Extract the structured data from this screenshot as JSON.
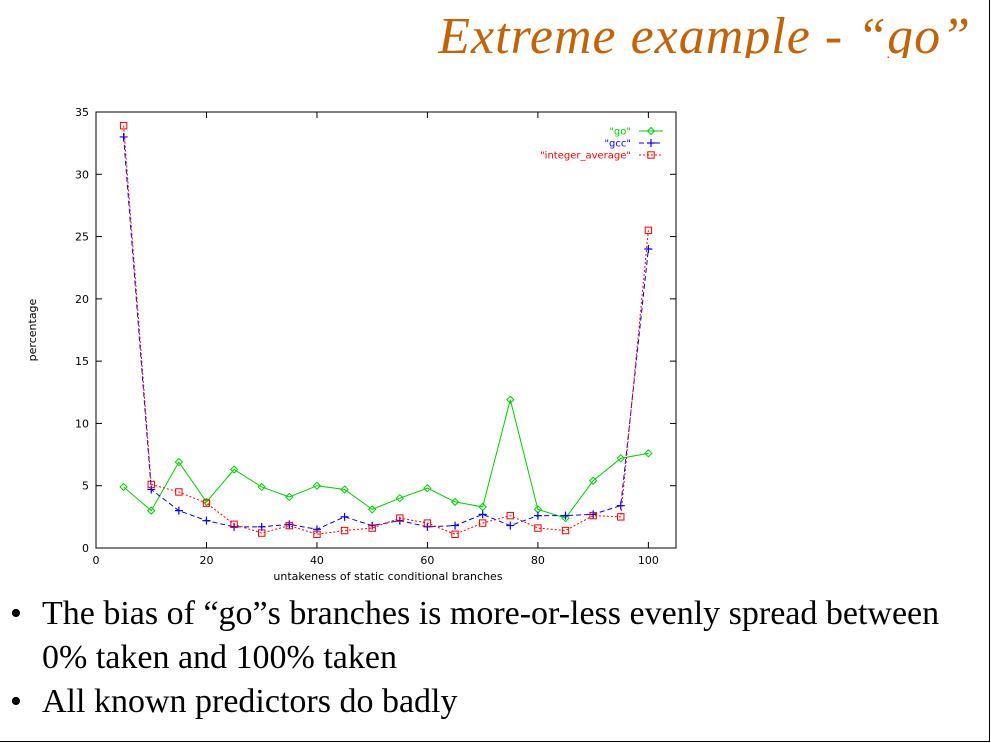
{
  "slide": {
    "title": "Extreme example - “go”",
    "bullets": [
      "The bias of “go”s branches is more-or-less evenly spread between 0% taken and 100% taken",
      "All known predictors do badly"
    ],
    "bullet_glyph": "•"
  },
  "chart_data": {
    "type": "line",
    "xlabel": "untakeness of static conditional branches",
    "ylabel": "percentage",
    "xlim": [
      0,
      105
    ],
    "ylim": [
      0,
      35
    ],
    "x_ticks": [
      0,
      20,
      40,
      60,
      80,
      100
    ],
    "y_ticks": [
      0,
      5,
      10,
      15,
      20,
      25,
      30,
      35
    ],
    "legend_position": "top-right",
    "x": [
      5,
      10,
      15,
      20,
      25,
      30,
      35,
      40,
      45,
      50,
      55,
      60,
      65,
      70,
      75,
      80,
      85,
      90,
      95,
      100
    ],
    "series": [
      {
        "name": "\"go\"",
        "color": "#00cc00",
        "marker": "diamond",
        "dash": "solid",
        "values": [
          4.9,
          3.0,
          6.9,
          3.7,
          6.3,
          4.9,
          4.1,
          5.0,
          4.7,
          3.1,
          4.0,
          4.8,
          3.7,
          3.3,
          11.9,
          3.1,
          2.4,
          5.4,
          7.2,
          7.6
        ]
      },
      {
        "name": "\"gcc\"",
        "color": "#0000ff",
        "marker": "plus",
        "dash": "dashed",
        "values": [
          33.0,
          4.7,
          3.0,
          2.2,
          1.7,
          1.7,
          1.9,
          1.5,
          2.5,
          1.8,
          2.2,
          1.7,
          1.8,
          2.7,
          1.8,
          2.6,
          2.6,
          2.7,
          3.4,
          24.0
        ]
      },
      {
        "name": "\"integer_average\"",
        "color": "#ff0000",
        "marker": "square",
        "dash": "dotted",
        "values": [
          33.9,
          5.1,
          4.5,
          3.6,
          1.9,
          1.2,
          1.8,
          1.1,
          1.4,
          1.6,
          2.4,
          2.0,
          1.1,
          2.0,
          2.6,
          1.6,
          1.4,
          2.6,
          2.5,
          25.5
        ]
      }
    ]
  }
}
